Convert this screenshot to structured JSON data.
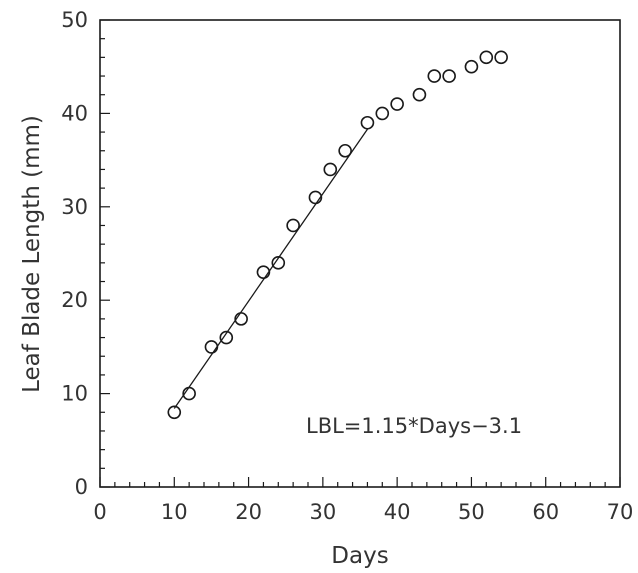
{
  "chart_data": {
    "type": "scatter",
    "title": "",
    "xlabel": "Days",
    "ylabel": "Leaf Blade Length (mm)",
    "xlim": [
      0,
      70
    ],
    "ylim": [
      0,
      50
    ],
    "x_ticks": [
      "0",
      "10",
      "20",
      "30",
      "40",
      "50",
      "60",
      "70"
    ],
    "y_ticks": [
      "0",
      "10",
      "20",
      "30",
      "40",
      "50"
    ],
    "grid": false,
    "series": [
      {
        "marker": "open-circle",
        "points": [
          {
            "x": 10,
            "y": 8
          },
          {
            "x": 12,
            "y": 10
          },
          {
            "x": 15,
            "y": 15
          },
          {
            "x": 17,
            "y": 16
          },
          {
            "x": 19,
            "y": 18
          },
          {
            "x": 22,
            "y": 23
          },
          {
            "x": 24,
            "y": 24
          },
          {
            "x": 26,
            "y": 28
          },
          {
            "x": 29,
            "y": 31
          },
          {
            "x": 31,
            "y": 34
          },
          {
            "x": 33,
            "y": 36
          },
          {
            "x": 36,
            "y": 39
          },
          {
            "x": 38,
            "y": 40
          },
          {
            "x": 40,
            "y": 41
          },
          {
            "x": 43,
            "y": 42
          },
          {
            "x": 45,
            "y": 44
          },
          {
            "x": 47,
            "y": 44
          },
          {
            "x": 50,
            "y": 45
          },
          {
            "x": 52,
            "y": 46
          },
          {
            "x": 54,
            "y": 46
          }
        ]
      }
    ],
    "fit_line": {
      "slope": 1.15,
      "intercept": -3.1,
      "x_start": 10,
      "x_end": 36
    },
    "annotation": "LBL=1.15*Days−3.1"
  }
}
